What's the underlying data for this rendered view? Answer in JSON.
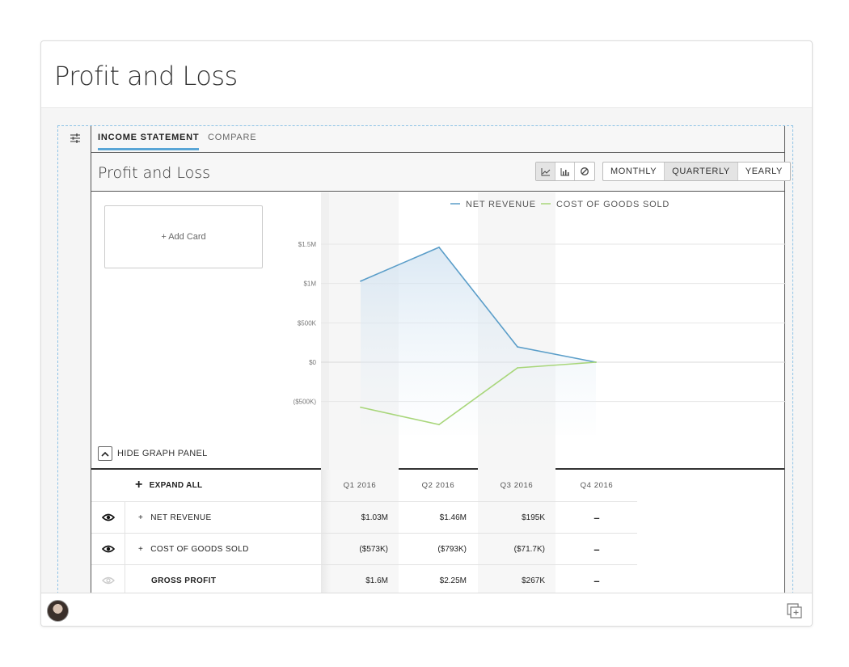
{
  "card": {
    "title": "Profit and Loss"
  },
  "tabs": [
    {
      "label": "INCOME STATEMENT",
      "active": true
    },
    {
      "label": "COMPARE",
      "active": false
    }
  ],
  "report": {
    "title": "Profit and Loss",
    "chart_buttons": [
      {
        "icon": "line-chart-icon",
        "active": true
      },
      {
        "icon": "bar-chart-icon",
        "active": false
      },
      {
        "icon": "no-chart-icon",
        "active": false
      }
    ],
    "periods": [
      {
        "label": "MONTHLY",
        "active": false
      },
      {
        "label": "QUARTERLY",
        "active": true
      },
      {
        "label": "YEARLY",
        "active": false
      }
    ]
  },
  "graph_panel": {
    "add_card": "+ Add Card",
    "hide_label": "HIDE GRAPH PANEL"
  },
  "chart_data": {
    "type": "line",
    "categories": [
      "Q1 2016",
      "Q2 2016",
      "Q3 2016",
      "Q4 2016"
    ],
    "series": [
      {
        "name": "NET REVENUE",
        "color": "#5b9ec9",
        "values": [
          1030000,
          1460000,
          195000,
          0
        ]
      },
      {
        "name": "COST OF GOODS SOLD",
        "color": "#a8d67a",
        "values": [
          -573000,
          -793000,
          -71700,
          0
        ]
      }
    ],
    "yticks": [
      1500000,
      1000000,
      500000,
      0,
      -500000
    ],
    "ytick_labels": [
      "$1.5M",
      "$1M",
      "$500K",
      "$0",
      "($500K)"
    ],
    "ylim": [
      -800000,
      1500000
    ],
    "legend_position": "top",
    "grid": true
  },
  "table": {
    "expand_all": "EXPAND ALL",
    "columns": [
      "Q1 2016",
      "Q2 2016",
      "Q3 2016",
      "Q4 2016"
    ],
    "rows": [
      {
        "prefix": "+",
        "label": "NET REVENUE",
        "values": [
          "$1.03M",
          "$1.46M",
          "$195K",
          "–"
        ],
        "visible": true,
        "bold": false
      },
      {
        "prefix": "+",
        "label": "COST OF GOODS SOLD",
        "values": [
          "($573K)",
          "($793K)",
          "($71.7K)",
          "–"
        ],
        "visible": true,
        "bold": false
      },
      {
        "prefix": "",
        "label": "GROSS PROFIT",
        "values": [
          "$1.6M",
          "$2.25M",
          "$267K",
          "–"
        ],
        "visible": false,
        "bold": true
      }
    ]
  },
  "footer": {
    "avatar": "user-avatar",
    "action_icon": "add-copy-icon"
  }
}
